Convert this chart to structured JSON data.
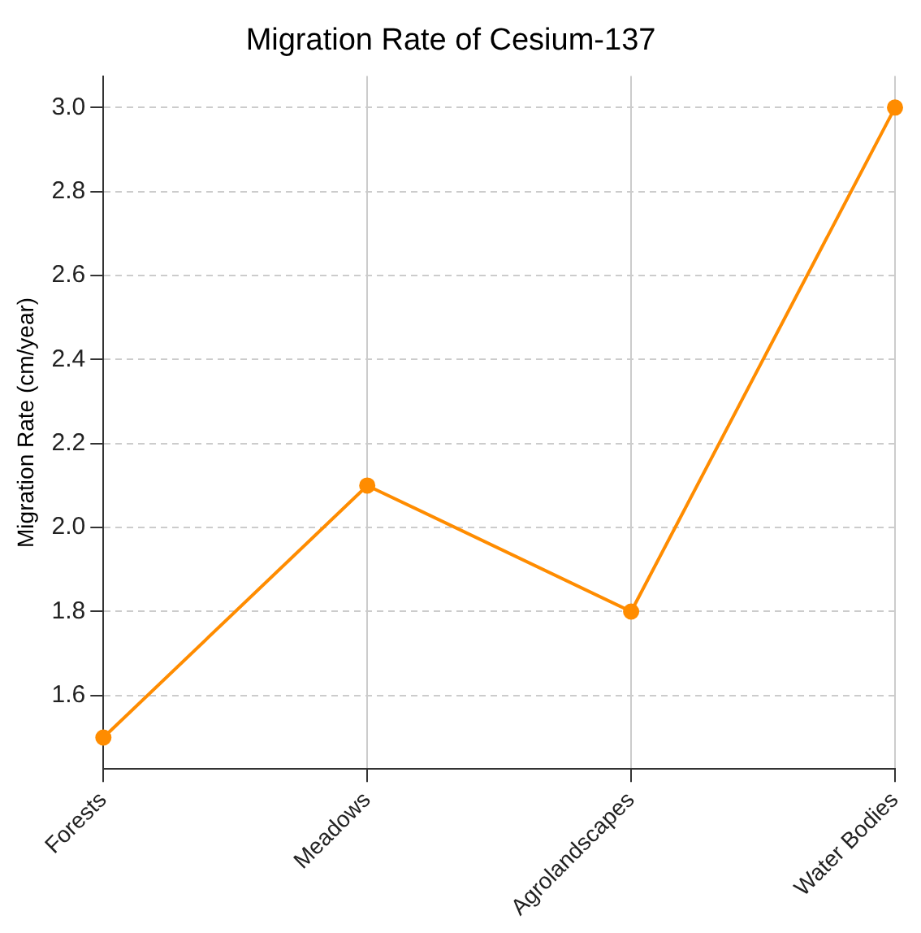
{
  "chart_data": {
    "type": "line",
    "title": "Migration Rate of Cesium-137",
    "ylabel": "Migration Rate (cm/year)",
    "categories": [
      "Forests",
      "Meadows",
      "Agrolandscapes",
      "Water Bodies"
    ],
    "series": [
      {
        "color": "#ff8c00",
        "values": [
          1.5,
          2.1,
          1.8,
          3.0
        ]
      }
    ],
    "ylim": [
      1.425,
      3.075
    ],
    "yticks": [
      1.6,
      1.8,
      {
        "value": 2,
        "label": "2.0"
      },
      2.2,
      2.4,
      2.6,
      2.8,
      {
        "value": 3,
        "label": "3.0"
      }
    ],
    "grid": true,
    "marker": "circle",
    "line_style": "solid",
    "legend": false
  }
}
